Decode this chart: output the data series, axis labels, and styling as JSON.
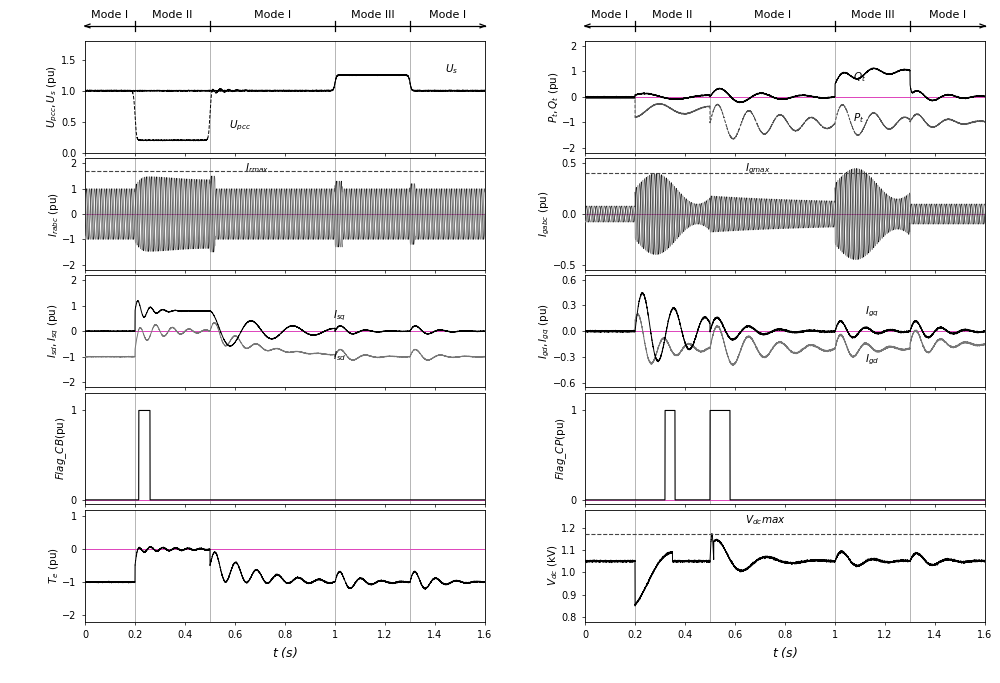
{
  "xlim": [
    0,
    1.6
  ],
  "mode_boundaries": [
    0.2,
    0.5,
    1.0,
    1.3
  ],
  "mode_labels": [
    "Mode I",
    "Mode II",
    "Mode I",
    "Mode III",
    "Mode I"
  ],
  "mode_positions": [
    0.1,
    0.35,
    0.75,
    1.15,
    1.45
  ],
  "left_ylabels": [
    "$U_{pcc},U_s$ (pu)",
    "$I_{rabc}$ (pu)",
    "$I_{sd},I_{sq}$ (pu)",
    "$Flag\\_CB$(pu)",
    "$T_e$ (pu)"
  ],
  "right_ylabels": [
    "$P_t,Q_t$ (pu)",
    "$I_{gabc}$ (pu)",
    "$I_{gd},I_{gq}$ (pu)",
    "$Flag\\_CP$(pu)",
    "$V_{dc}$ (kV)"
  ],
  "xlabel": "$t$ (s)",
  "pink": "#dd44bb",
  "gray_line": "#aaaaaa",
  "dark_gray": "#444444",
  "green": "#2e8b2e"
}
